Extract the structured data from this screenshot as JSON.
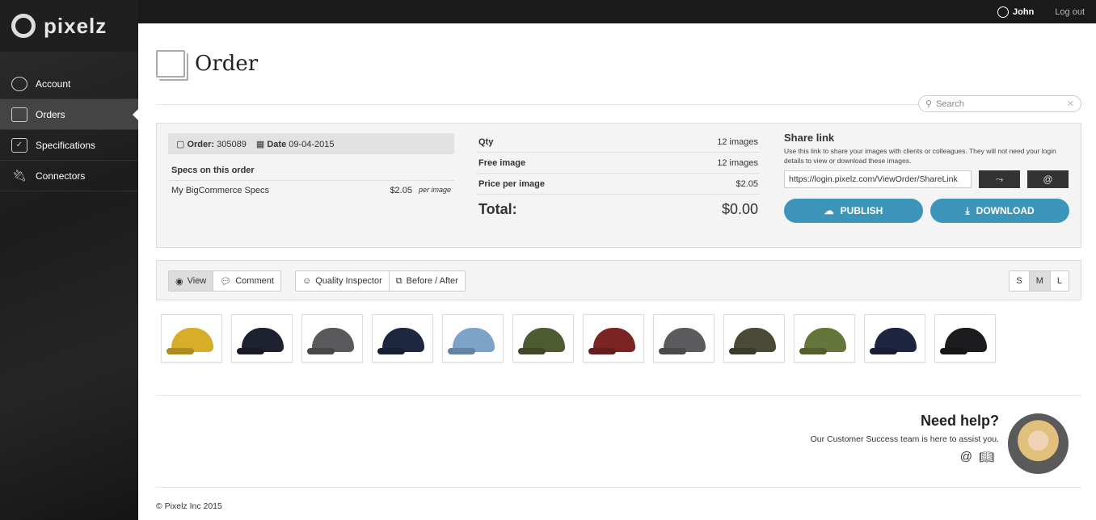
{
  "brand": "pixelz",
  "sidebar": {
    "items": [
      {
        "label": "Account",
        "icon": "user-icon"
      },
      {
        "label": "Orders",
        "icon": "images-icon",
        "active": true
      },
      {
        "label": "Specifications",
        "icon": "checklist-icon"
      },
      {
        "label": "Connectors",
        "icon": "plug-icon"
      }
    ]
  },
  "topbar": {
    "user": "John",
    "logout": "Log out"
  },
  "page": {
    "title": "Order"
  },
  "search": {
    "placeholder": "Search"
  },
  "order": {
    "order_label": "Order:",
    "order_number": "305089",
    "date_label": "Date",
    "date": "09-04-2015",
    "specs_heading": "Specs on this order",
    "spec_name": "My BigCommerce Specs",
    "spec_price": "$2.05",
    "spec_unit": "per image"
  },
  "totals": {
    "qty_label": "Qty",
    "qty": "12 images",
    "free_label": "Free image",
    "free": "12 images",
    "ppi_label": "Price per image",
    "ppi": "$2.05",
    "total_label": "Total:",
    "total": "$0.00"
  },
  "share": {
    "title": "Share link",
    "description": "Use this link to share your images with clients or colleagues. They will not need your login details to view or download these images.",
    "url": "https://login.pixelz.com/ViewOrder/ShareLink",
    "publish": "PUBLISH",
    "download": "DOWNLOAD"
  },
  "toolbar": {
    "view": "View",
    "comment": "Comment",
    "quality": "Quality Inspector",
    "before_after": "Before / After",
    "sizes": [
      "S",
      "M",
      "L"
    ],
    "active_size": "M"
  },
  "thumbnails": [
    "#d6ae2a",
    "#1e2230",
    "#5a5a5c",
    "#1d2740",
    "#7ea3c8",
    "#4e5a32",
    "#7a2524",
    "#5c5c5e",
    "#4a4a36",
    "#66753a",
    "#1e2540",
    "#1c1c1e"
  ],
  "help": {
    "title": "Need help?",
    "text": "Our Customer Success team is here to assist you."
  },
  "footer": "© Pixelz Inc 2015",
  "colors": {
    "accent": "#3d96b9"
  }
}
